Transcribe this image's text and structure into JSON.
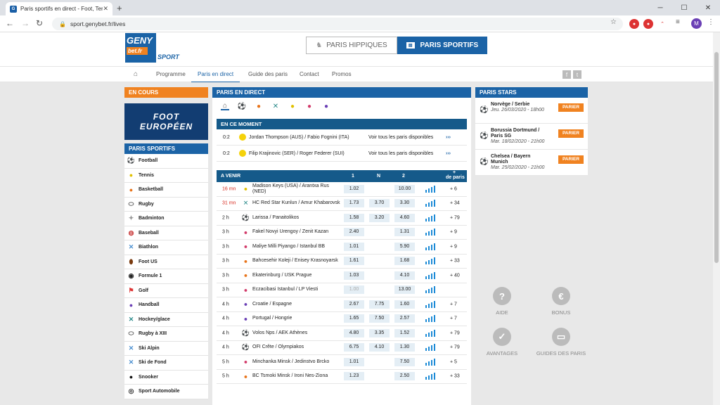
{
  "browser": {
    "tab_title": "Paris sportifs en direct - Foot, Ter",
    "tab_favicon": "G",
    "url": "sport.genybet.fr/lives",
    "avatar": "M"
  },
  "header": {
    "logo_top": "GENY",
    "logo_bottom": "bet.fr",
    "logo_sport": "SPORT",
    "btn_hippiques": "PARIS HIPPIQUES",
    "btn_sportifs": "PARIS SPORTIFS"
  },
  "menu": {
    "items": [
      "Programme",
      "Paris en direct",
      "Guide des paris",
      "Contact",
      "Promos"
    ]
  },
  "left": {
    "en_cours": "EN COURS",
    "banner_line1": "FOOT",
    "banner_line2": "EUROPÉEN",
    "paris_sportifs": "PARIS SPORTIFS",
    "sports": [
      {
        "label": "Football",
        "icon": "soccer-ball"
      },
      {
        "label": "Tennis",
        "icon": "tennis-ball"
      },
      {
        "label": "Basketball",
        "icon": "basketball"
      },
      {
        "label": "Rugby",
        "icon": "rugby-ball"
      },
      {
        "label": "Badminton",
        "icon": "shuttlecock"
      },
      {
        "label": "Baseball",
        "icon": "baseball"
      },
      {
        "label": "Biathlon",
        "icon": "ski"
      },
      {
        "label": "Foot US",
        "icon": "american-football"
      },
      {
        "label": "Formule 1",
        "icon": "f1"
      },
      {
        "label": "Golf",
        "icon": "golf-flag"
      },
      {
        "label": "Handball",
        "icon": "handball"
      },
      {
        "label": "Hockey/glace",
        "icon": "hockey-sticks"
      },
      {
        "label": "Rugby à XIII",
        "icon": "rugby-ball"
      },
      {
        "label": "Ski Alpin",
        "icon": "ski"
      },
      {
        "label": "Ski de Fond",
        "icon": "ski"
      },
      {
        "label": "Snooker",
        "icon": "snooker-ball"
      },
      {
        "label": "Sport Automobile",
        "icon": "car-wheel"
      }
    ]
  },
  "center": {
    "title": "PARIS EN DIRECT",
    "moment_title": "EN CE MOMENT",
    "live": [
      {
        "score": "0:2",
        "match": "Jordan Thompson (AUS) / Fabio Fognini (ITA)",
        "voir": "Voir tous les paris disponibles"
      },
      {
        "score": "0:2",
        "match": "Filip Krajinovic (SER) / Roger Federer (SUI)",
        "voir": "Voir tous les paris disponibles"
      }
    ],
    "avenir": {
      "title": "A VENIR",
      "col1": "1",
      "colN": "N",
      "col2": "2",
      "plus_sign": "+",
      "plus_label": "de paris"
    },
    "matches": [
      {
        "time": "16 mn",
        "red": true,
        "icon": "tennis",
        "name": "Madison Keys (USA) / Arantxa Rus (NED)",
        "o1": "1.02",
        "oN": "",
        "o2": "10.00",
        "plus": "+ 6"
      },
      {
        "time": "31 mn",
        "red": true,
        "icon": "hockey",
        "name": "HC Red Star Kunlun / Amur Khabarovsk",
        "o1": "1.73",
        "oN": "3.70",
        "o2": "3.30",
        "plus": "+ 34"
      },
      {
        "time": "2 h",
        "red": false,
        "icon": "soccer",
        "name": "Larissa / Panaitolikos",
        "o1": "1.58",
        "oN": "3.20",
        "o2": "4.60",
        "plus": "+ 79"
      },
      {
        "time": "3 h",
        "red": false,
        "icon": "volley",
        "name": "Fakel Novyi Urengoy / Zenit Kazan",
        "o1": "2.40",
        "oN": "",
        "o2": "1.31",
        "plus": "+ 9"
      },
      {
        "time": "3 h",
        "red": false,
        "icon": "volley",
        "name": "Maliye Milli Piyango / Istanbul BB",
        "o1": "1.01",
        "oN": "",
        "o2": "5.90",
        "plus": "+ 9"
      },
      {
        "time": "3 h",
        "red": false,
        "icon": "basket",
        "name": "Bahcesehir Koleji / Enisey Krasnoyarsk",
        "o1": "1.61",
        "oN": "",
        "o2": "1.68",
        "plus": "+ 33"
      },
      {
        "time": "3 h",
        "red": false,
        "icon": "basket",
        "name": "Ekaterinburg / USK Prague",
        "o1": "1.03",
        "oN": "",
        "o2": "4.10",
        "plus": "+ 40"
      },
      {
        "time": "3 h",
        "red": false,
        "icon": "volley",
        "name": "Eczacibasi Istanbul / LP Viesti",
        "o1": "1.00",
        "oN": "",
        "o2": "13.00",
        "plus": "",
        "dim1": true
      },
      {
        "time": "4 h",
        "red": false,
        "icon": "handball",
        "name": "Croatie / Espagne",
        "o1": "2.67",
        "oN": "7.75",
        "o2": "1.60",
        "plus": "+ 7"
      },
      {
        "time": "4 h",
        "red": false,
        "icon": "handball",
        "name": "Portugal / Hongrie",
        "o1": "1.65",
        "oN": "7.50",
        "o2": "2.57",
        "plus": "+ 7"
      },
      {
        "time": "4 h",
        "red": false,
        "icon": "soccer",
        "name": "Volos Nps / AEK Athènes",
        "o1": "4.80",
        "oN": "3.35",
        "o2": "1.52",
        "plus": "+ 79"
      },
      {
        "time": "4 h",
        "red": false,
        "icon": "soccer",
        "name": "OFI Crête / Olympiakos",
        "o1": "6.75",
        "oN": "4.10",
        "o2": "1.30",
        "plus": "+ 79"
      },
      {
        "time": "5 h",
        "red": false,
        "icon": "volley",
        "name": "Minchanka Minsk / Jedinstvo Brcko",
        "o1": "1.01",
        "oN": "",
        "o2": "7.50",
        "plus": "+ 5"
      },
      {
        "time": "5 h",
        "red": false,
        "icon": "basket",
        "name": "BC Tsmoki Minsk / Ironi Nes-Ziona",
        "o1": "1.23",
        "oN": "",
        "o2": "2.50",
        "plus": "+ 33"
      }
    ]
  },
  "right": {
    "title": "PARIS STARS",
    "btn": "PARIER",
    "stars": [
      {
        "teams": "Norvège / Serbie",
        "date": "Jeu. 26/03/2020 - 18h00"
      },
      {
        "teams": "Borussia Dortmund / Paris SG",
        "date": "Mar. 18/02/2020 - 21h00"
      },
      {
        "teams": "Chelsea / Bayern Munich",
        "date": "Mar. 25/02/2020 - 21h00"
      }
    ],
    "help": [
      "AIDE",
      "BONUS",
      "AVANTAGES",
      "GUIDES DES PARIS"
    ]
  },
  "colors": {
    "blue": "#1b63a6",
    "orange": "#f08220",
    "dark_blue": "#155a8a",
    "red": "#d6281c"
  }
}
